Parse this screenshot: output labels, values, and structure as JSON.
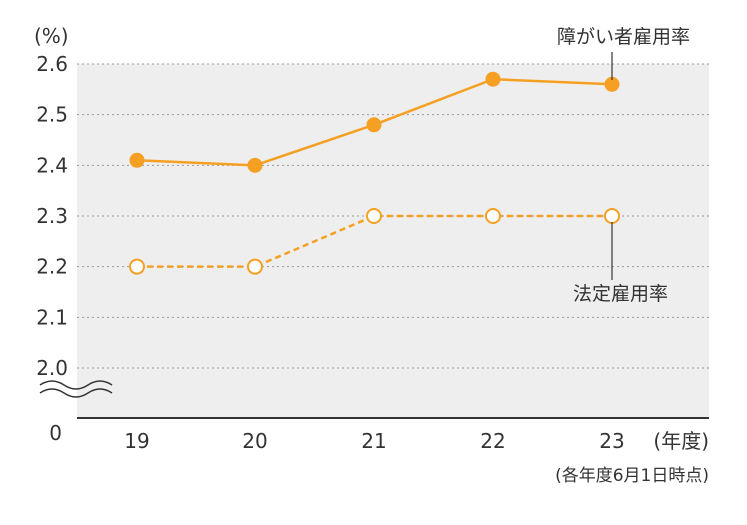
{
  "chart_data": {
    "type": "line",
    "categories": [
      "19",
      "20",
      "21",
      "22",
      "23"
    ],
    "series": [
      {
        "name": "障がい者雇用率",
        "values": [
          2.41,
          2.4,
          2.48,
          2.57,
          2.56
        ],
        "color": "#f5a023",
        "style": "solid-filled"
      },
      {
        "name": "法定雇用率",
        "values": [
          2.2,
          2.2,
          2.3,
          2.3,
          2.3
        ],
        "color": "#f5a023",
        "style": "dashed-hollow"
      }
    ],
    "y_ticks": [
      "2.6",
      "2.5",
      "2.4",
      "2.3",
      "2.2",
      "2.1",
      "2.0"
    ],
    "y_zero_label": "0",
    "ylabel": "(%)",
    "xlabel": "(年度)",
    "ylim": [
      2.0,
      2.6
    ],
    "note": "(各年度6月1日時点)",
    "plot_background": "#eeeeee",
    "grid": "dotted"
  }
}
